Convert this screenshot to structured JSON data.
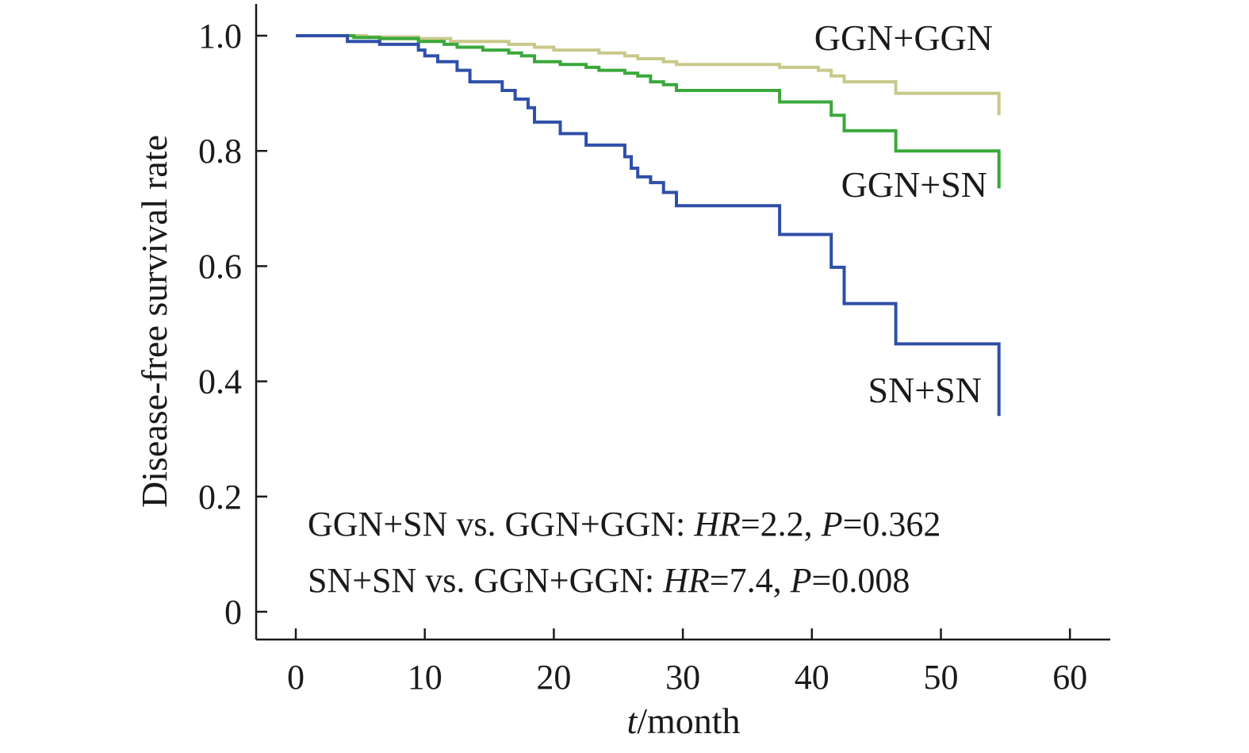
{
  "chart_data": {
    "type": "line",
    "step": true,
    "xlabel_italic": "t",
    "xlabel_rest": "/month",
    "ylabel": "Disease-free survival rate",
    "xlim": [
      0,
      60
    ],
    "ylim": [
      0,
      1.0
    ],
    "x_ticks": [
      0,
      10,
      20,
      30,
      40,
      50,
      60
    ],
    "x_tick_labels": [
      "0",
      "10",
      "20",
      "30",
      "40",
      "50",
      "60"
    ],
    "y_ticks": [
      0,
      0.2,
      0.4,
      0.6,
      0.8,
      1.0
    ],
    "y_tick_labels": [
      "0",
      "0.2",
      "0.4",
      "0.6",
      "0.8",
      "1.0"
    ],
    "grid": false,
    "series": [
      {
        "name": "GGN+GGN",
        "color": "#c8c88a",
        "points": [
          [
            0,
            1.0
          ],
          [
            5.5,
            0.998
          ],
          [
            9.5,
            0.995
          ],
          [
            12,
            0.99
          ],
          [
            16.5,
            0.985
          ],
          [
            18.5,
            0.98
          ],
          [
            20,
            0.975
          ],
          [
            23.5,
            0.97
          ],
          [
            25.5,
            0.965
          ],
          [
            26.5,
            0.96
          ],
          [
            28.5,
            0.955
          ],
          [
            29.5,
            0.95
          ],
          [
            37.5,
            0.945
          ],
          [
            40.5,
            0.94
          ],
          [
            41.5,
            0.93
          ],
          [
            42.5,
            0.92
          ],
          [
            46.5,
            0.9
          ],
          [
            54.5,
            0.9
          ],
          [
            54.5,
            0.862
          ]
        ]
      },
      {
        "name": "GGN+SN",
        "color": "#3aa83a",
        "points": [
          [
            0,
            1.0
          ],
          [
            4.5,
            0.997
          ],
          [
            6.5,
            0.995
          ],
          [
            9.5,
            0.99
          ],
          [
            11.5,
            0.985
          ],
          [
            12.5,
            0.98
          ],
          [
            14.5,
            0.975
          ],
          [
            16.5,
            0.97
          ],
          [
            17.5,
            0.965
          ],
          [
            18.5,
            0.955
          ],
          [
            20.5,
            0.95
          ],
          [
            22.5,
            0.945
          ],
          [
            23.5,
            0.94
          ],
          [
            25.5,
            0.935
          ],
          [
            26.5,
            0.93
          ],
          [
            27.5,
            0.92
          ],
          [
            28.5,
            0.915
          ],
          [
            29.5,
            0.905
          ],
          [
            37.5,
            0.885
          ],
          [
            41.5,
            0.862
          ],
          [
            42.5,
            0.835
          ],
          [
            46.5,
            0.8
          ],
          [
            54.5,
            0.8
          ],
          [
            54.5,
            0.735
          ]
        ]
      },
      {
        "name": "SN+SN",
        "color": "#2f4fa8",
        "points": [
          [
            0,
            1.0
          ],
          [
            4,
            0.99
          ],
          [
            6.5,
            0.985
          ],
          [
            9.5,
            0.975
          ],
          [
            10,
            0.965
          ],
          [
            11,
            0.955
          ],
          [
            12.5,
            0.94
          ],
          [
            13.5,
            0.92
          ],
          [
            16,
            0.905
          ],
          [
            17,
            0.89
          ],
          [
            18,
            0.875
          ],
          [
            18.5,
            0.85
          ],
          [
            20.5,
            0.83
          ],
          [
            22.5,
            0.81
          ],
          [
            25.5,
            0.79
          ],
          [
            26,
            0.77
          ],
          [
            26.5,
            0.755
          ],
          [
            27.5,
            0.745
          ],
          [
            28.5,
            0.728
          ],
          [
            29.5,
            0.705
          ],
          [
            37.5,
            0.655
          ],
          [
            41.5,
            0.598
          ],
          [
            42.5,
            0.535
          ],
          [
            46.5,
            0.465
          ],
          [
            54.5,
            0.465
          ],
          [
            54.5,
            0.34
          ]
        ]
      }
    ],
    "series_labels": [
      "GGN+GGN",
      "GGN+SN",
      "SN+SN"
    ],
    "annotations": [
      {
        "text": "GGN+SN vs. GGN+GGN: ",
        "hr_label": "HR",
        "hr_value": "=2.2, ",
        "p_label": "P",
        "p_value": "=0.362"
      },
      {
        "text": "SN+SN vs. GGN+GGN: ",
        "hr_label": "HR",
        "hr_value": "=7.4, ",
        "p_label": "P",
        "p_value": "=0.008"
      }
    ]
  }
}
